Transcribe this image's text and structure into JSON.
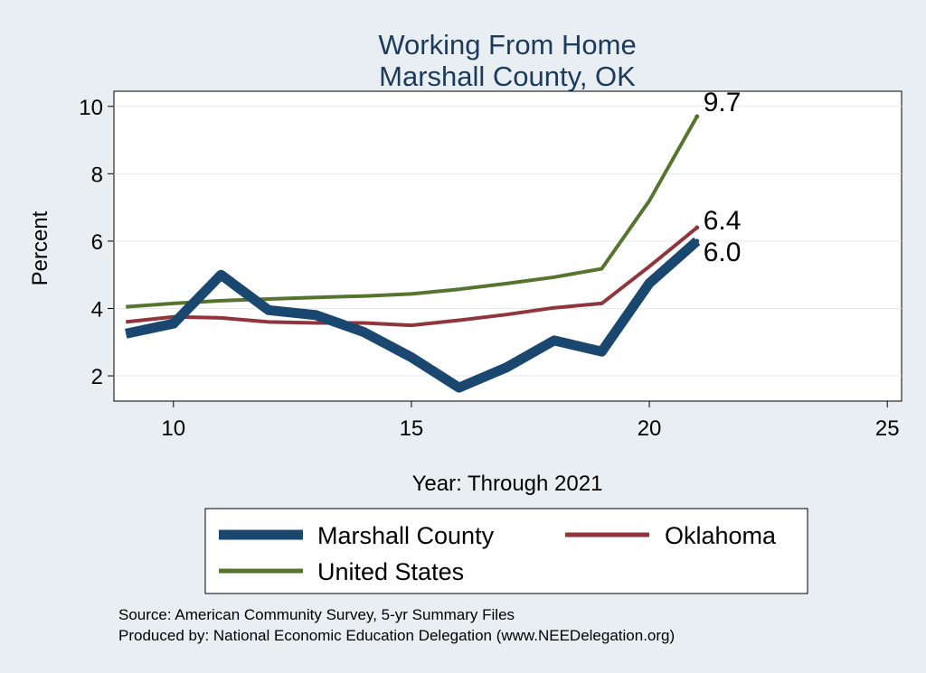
{
  "chart_data": {
    "type": "line",
    "title": [
      "Working From Home",
      "Marshall County, OK"
    ],
    "xlabel": "Year: Through 2021",
    "ylabel": "Percent",
    "xlim": [
      8.75,
      25.3
    ],
    "ylim": [
      1.25,
      10.45
    ],
    "xticks": [
      10,
      15,
      20,
      25
    ],
    "yticks": [
      2,
      4,
      6,
      8,
      10
    ],
    "grid": true,
    "legend_position": "bottom",
    "series": [
      {
        "name": "Marshall County",
        "color": "#1a476f",
        "x": [
          9,
          10,
          11,
          12,
          13,
          14,
          15,
          16,
          17,
          18,
          19,
          20,
          21
        ],
        "y": [
          3.25,
          3.55,
          5.0,
          3.95,
          3.8,
          3.3,
          2.55,
          1.65,
          2.25,
          3.05,
          2.72,
          4.75,
          6.0
        ],
        "end_label": "6.0"
      },
      {
        "name": "Oklahoma",
        "color": "#90353b",
        "x": [
          9,
          10,
          11,
          12,
          13,
          14,
          15,
          16,
          17,
          18,
          19,
          20,
          21
        ],
        "y": [
          3.6,
          3.75,
          3.72,
          3.6,
          3.57,
          3.57,
          3.5,
          3.65,
          3.82,
          4.02,
          4.15,
          5.25,
          6.4
        ],
        "end_label": "6.4"
      },
      {
        "name": "United States",
        "color": "#55752f",
        "x": [
          9,
          10,
          11,
          12,
          13,
          14,
          15,
          16,
          17,
          18,
          19,
          20,
          21
        ],
        "y": [
          4.05,
          4.15,
          4.23,
          4.28,
          4.33,
          4.37,
          4.43,
          4.57,
          4.74,
          4.93,
          5.18,
          7.2,
          9.7
        ],
        "end_label": "9.7"
      }
    ]
  },
  "source_lines": [
    "Source: American Community Survey, 5-yr Summary Files",
    "Produced by: National Economic Education Delegation (www.NEEDelegation.org)"
  ]
}
